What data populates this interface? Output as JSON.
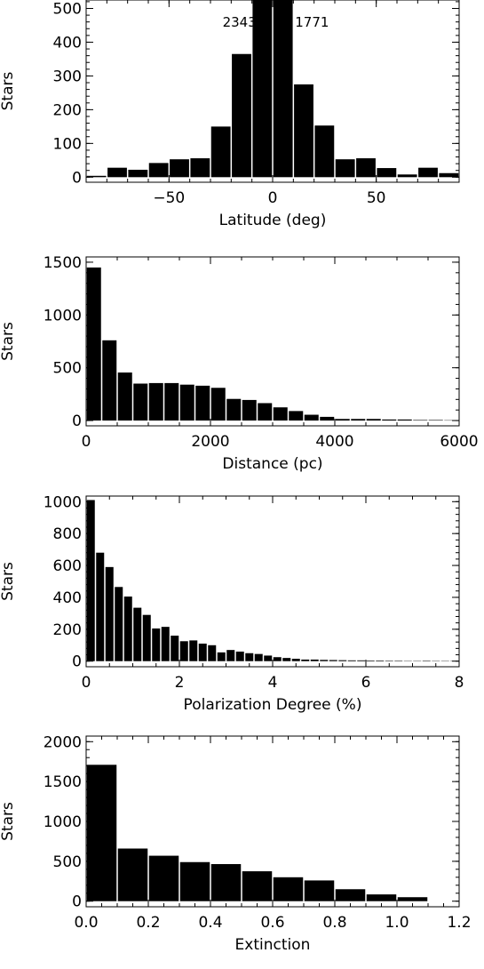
{
  "chart_data": [
    {
      "type": "bar",
      "xlabel": "Latitude (deg)",
      "ylabel": "Stars",
      "xlim": [
        -90,
        90
      ],
      "ylim": [
        -15,
        525
      ],
      "xticks": [
        -50,
        0,
        50
      ],
      "yticks": [
        0,
        100,
        200,
        300,
        400,
        500
      ],
      "bin_width": 10,
      "x": [
        -85,
        -75,
        -65,
        -55,
        -45,
        -35,
        -25,
        -15,
        -5,
        5,
        15,
        25,
        35,
        45,
        55,
        65,
        75,
        85
      ],
      "values": [
        4,
        28,
        22,
        42,
        53,
        56,
        150,
        365,
        2343,
        1771,
        275,
        153,
        53,
        56,
        27,
        8,
        28,
        12
      ],
      "annotations": [
        {
          "text": "2343",
          "x": -16
        },
        {
          "text": "1771",
          "x": 19
        }
      ]
    },
    {
      "type": "bar",
      "xlabel": "Distance (pc)",
      "ylabel": "Stars",
      "xlim": [
        0,
        6000
      ],
      "ylim": [
        -50,
        1550
      ],
      "xticks": [
        0,
        2000,
        4000,
        6000
      ],
      "yticks": [
        0,
        500,
        1000,
        1500
      ],
      "bin_width": 250,
      "x": [
        125,
        375,
        625,
        875,
        1125,
        1375,
        1625,
        1875,
        2125,
        2375,
        2625,
        2875,
        3125,
        3375,
        3625,
        3875,
        4125,
        4375,
        4625,
        4875,
        5125,
        5375,
        5625,
        5875
      ],
      "values": [
        1450,
        760,
        455,
        350,
        355,
        355,
        340,
        330,
        310,
        205,
        195,
        165,
        125,
        90,
        55,
        35,
        15,
        15,
        15,
        10,
        10,
        5,
        5,
        3
      ]
    },
    {
      "type": "bar",
      "xlabel": "Polarization Degree (%)",
      "ylabel": "Stars",
      "xlim": [
        0,
        8
      ],
      "ylim": [
        -35,
        1035
      ],
      "xticks": [
        0,
        2,
        4,
        6,
        8
      ],
      "yticks": [
        0,
        200,
        400,
        600,
        800,
        1000
      ],
      "bin_width": 0.2,
      "x": [
        0.1,
        0.3,
        0.5,
        0.7,
        0.9,
        1.1,
        1.3,
        1.5,
        1.7,
        1.9,
        2.1,
        2.3,
        2.5,
        2.7,
        2.9,
        3.1,
        3.3,
        3.5,
        3.7,
        3.9,
        4.1,
        4.3,
        4.5,
        4.7,
        4.9,
        5.1,
        5.3,
        5.5,
        5.7,
        5.9,
        6.1,
        6.3,
        6.5,
        6.7,
        6.9,
        7.1,
        7.3,
        7.5,
        7.7,
        7.9
      ],
      "values": [
        1010,
        680,
        590,
        465,
        405,
        335,
        290,
        205,
        215,
        160,
        125,
        130,
        110,
        100,
        55,
        70,
        60,
        50,
        45,
        35,
        25,
        20,
        15,
        10,
        10,
        8,
        7,
        6,
        5,
        5,
        4,
        4,
        3,
        3,
        2,
        2,
        3,
        2,
        2,
        2
      ]
    },
    {
      "type": "bar",
      "xlabel": "Extinction",
      "ylabel": "Stars",
      "xlim": [
        0.0,
        1.2
      ],
      "ylim": [
        -70,
        2070
      ],
      "xticks": [
        "0.0",
        "0.2",
        "0.4",
        "0.6",
        "0.8",
        "1.0",
        "1.2"
      ],
      "yticks": [
        0,
        500,
        1000,
        1500,
        2000
      ],
      "bin_width": 0.1,
      "x": [
        0.05,
        0.15,
        0.25,
        0.35,
        0.45,
        0.55,
        0.65,
        0.75,
        0.85,
        0.95,
        1.05,
        1.15
      ],
      "values": [
        1710,
        660,
        570,
        490,
        465,
        375,
        300,
        260,
        150,
        85,
        50,
        0
      ]
    }
  ]
}
